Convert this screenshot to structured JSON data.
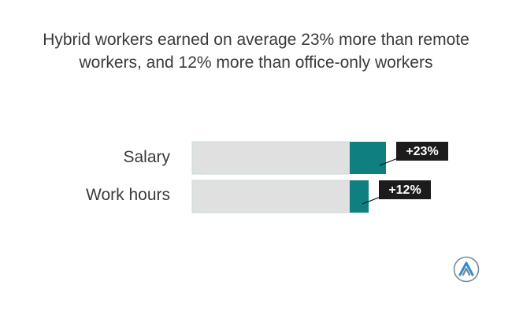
{
  "chart_data": {
    "type": "bar",
    "title": "Hybrid workers earned on average 23% more than remote workers, and 12% more than office-only workers",
    "categories": [
      "Salary",
      "Work hours"
    ],
    "series": [
      {
        "values": [
          100,
          100
        ]
      },
      {
        "values": [
          23,
          12
        ]
      }
    ],
    "data_labels": [
      "+23%",
      "+12%"
    ],
    "xlim": [
      0,
      123
    ],
    "grid": false,
    "legend": "none",
    "colors": {
      "base": "#e0e0e0",
      "base_border": "#c8d8d8",
      "increase": "#0f7f80",
      "label_bg": "#1c1c1c",
      "label_text": "#ffffff"
    }
  },
  "logo": {
    "icon": "brand-logo-icon"
  }
}
